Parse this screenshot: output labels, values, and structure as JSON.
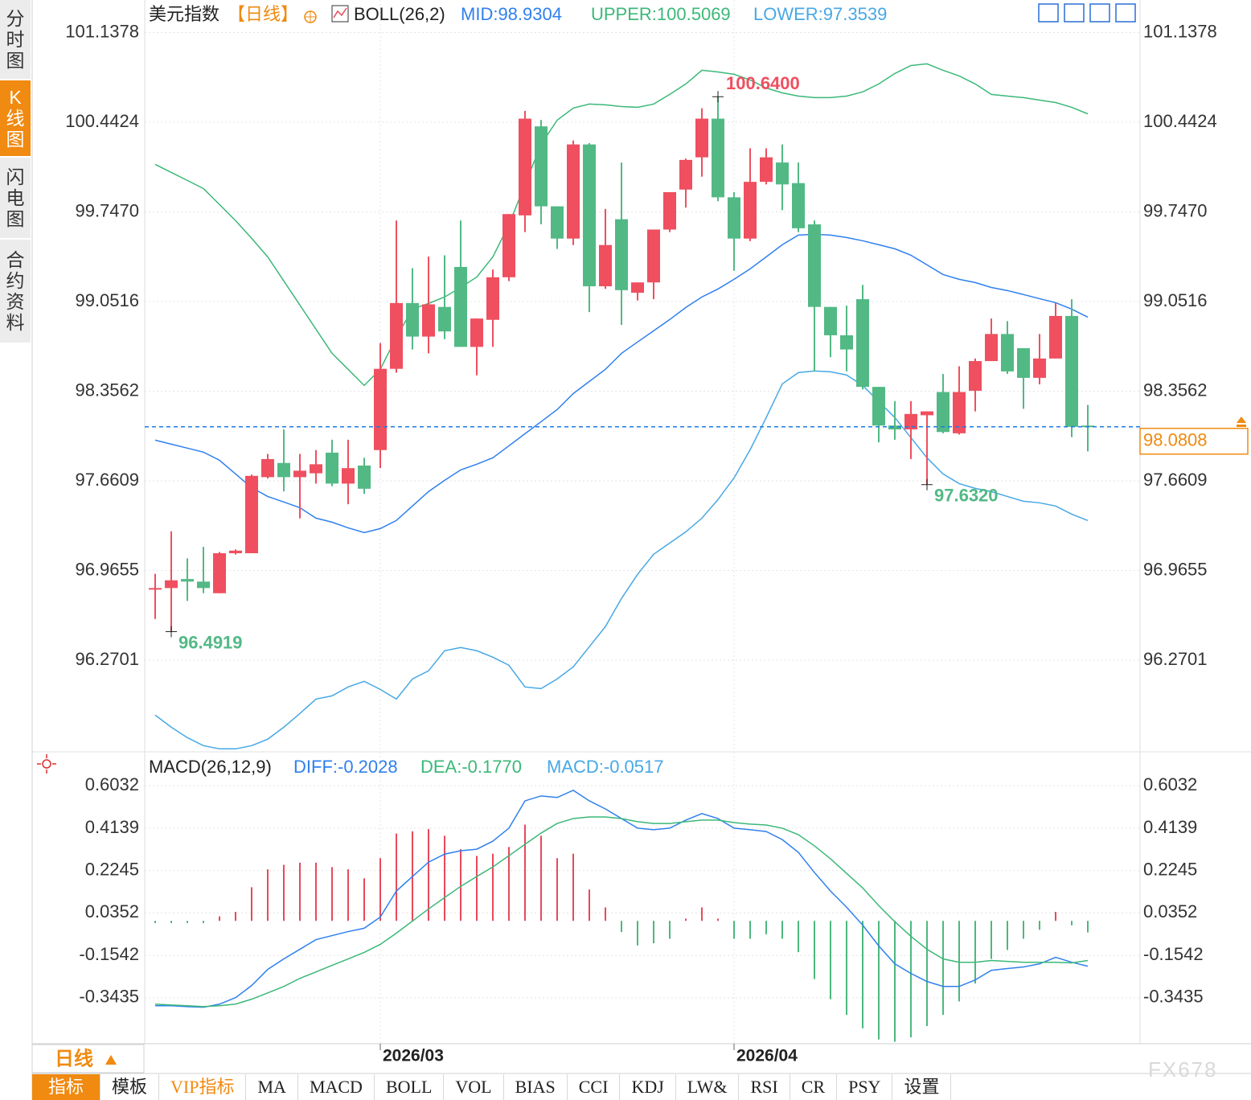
{
  "sidebar": [
    "分时图",
    "K线图",
    "闪电图",
    "合约资料"
  ],
  "timeframe": "日线",
  "tabs": [
    "指标",
    "模板",
    "VIP指标",
    "MA",
    "MACD",
    "BOLL",
    "VOL",
    "BIAS",
    "CCI",
    "KDJ",
    "LW&",
    "RSI",
    "CR",
    "PSY",
    "设置"
  ],
  "watermark": "FX678",
  "chart_data": [
    {
      "type": "candlestick",
      "title": "美元指数",
      "period": "【日线】",
      "indicator": "BOLL(26,2)",
      "categories": [
        null,
        null,
        null,
        null,
        null,
        null,
        null,
        null,
        null,
        null,
        null,
        null,
        null,
        null,
        "2026/03",
        null,
        null,
        null,
        null,
        null,
        null,
        null,
        null,
        null,
        null,
        null,
        null,
        null,
        null,
        null,
        null,
        null,
        null,
        null,
        null,
        null,
        "2026/04",
        null,
        null,
        null,
        null,
        null,
        null,
        null,
        null,
        null,
        null,
        null,
        null,
        null,
        null,
        null,
        null,
        null,
        null,
        null,
        null,
        null,
        null
      ],
      "open": [
        96.83,
        96.83,
        96.9,
        96.88,
        96.79,
        97.1,
        97.1,
        97.69,
        97.8,
        97.69,
        97.72,
        97.88,
        97.64,
        97.78,
        97.9,
        98.53,
        99.04,
        98.78,
        99.01,
        99.32,
        98.7,
        98.91,
        99.24,
        99.72,
        100.41,
        99.79,
        99.54,
        100.27,
        99.17,
        99.69,
        99.12,
        99.2,
        99.61,
        99.92,
        100.17,
        100.47,
        99.86,
        99.54,
        99.98,
        100.13,
        99.97,
        99.65,
        99.01,
        98.79,
        99.07,
        98.39,
        98.09,
        98.06,
        98.17,
        98.35,
        98.03,
        98.36,
        98.59,
        98.8,
        98.69,
        98.46,
        98.61,
        98.94,
        98.09
      ],
      "high": [
        96.94,
        97.27,
        97.06,
        97.15,
        97.11,
        97.13,
        97.71,
        97.87,
        98.06,
        97.87,
        97.9,
        97.98,
        97.98,
        97.84,
        98.73,
        99.68,
        99.31,
        99.4,
        99.41,
        99.68,
        98.92,
        99.3,
        99.73,
        100.53,
        100.46,
        99.79,
        100.3,
        100.28,
        99.77,
        100.13,
        99.2,
        99.61,
        99.9,
        100.16,
        100.55,
        100.64,
        99.9,
        100.24,
        100.24,
        100.27,
        100.13,
        99.68,
        99.01,
        99.02,
        99.18,
        98.39,
        98.28,
        98.28,
        98.2,
        98.49,
        98.55,
        98.61,
        98.92,
        98.9,
        98.69,
        98.8,
        99.04,
        99.07,
        98.25
      ],
      "low": [
        96.59,
        96.4919,
        96.73,
        96.79,
        96.79,
        97.09,
        97.1,
        97.68,
        97.58,
        97.37,
        97.64,
        97.62,
        97.48,
        97.56,
        97.76,
        98.5,
        98.68,
        98.65,
        98.76,
        98.7,
        98.48,
        98.7,
        99.21,
        99.59,
        99.65,
        99.46,
        99.49,
        98.97,
        99.15,
        98.87,
        99.06,
        99.07,
        99.59,
        99.78,
        100.02,
        99.83,
        99.29,
        99.52,
        99.96,
        99.76,
        99.59,
        98.51,
        98.62,
        98.51,
        98.37,
        97.96,
        97.98,
        97.83,
        97.632,
        98.03,
        98.02,
        98.2,
        98.59,
        98.49,
        98.22,
        98.41,
        98.61,
        98.0,
        97.89
      ],
      "close": [
        96.83,
        96.89,
        96.88,
        96.83,
        97.1,
        97.12,
        97.7,
        97.83,
        97.69,
        97.74,
        97.79,
        97.64,
        97.76,
        97.6,
        98.53,
        99.04,
        98.78,
        99.03,
        98.82,
        98.7,
        98.92,
        99.24,
        99.73,
        100.47,
        99.79,
        99.54,
        100.27,
        99.17,
        99.49,
        99.14,
        99.2,
        99.61,
        99.9,
        100.15,
        100.47,
        99.86,
        99.54,
        99.98,
        100.17,
        99.96,
        99.62,
        99.01,
        98.79,
        98.68,
        98.39,
        98.09,
        98.06,
        98.18,
        98.2,
        98.04,
        98.35,
        98.59,
        98.8,
        98.51,
        98.46,
        98.61,
        98.94,
        98.08,
        98.0808
      ],
      "up_color": "#ef4f5f",
      "down_color": "#52b985",
      "series": [
        {
          "name": "MID:98.9304",
          "color": "#2f80ed",
          "values": [
            97.977,
            97.946,
            97.915,
            97.884,
            97.821,
            97.715,
            97.609,
            97.54,
            97.497,
            97.453,
            97.372,
            97.341,
            97.297,
            97.26,
            97.291,
            97.354,
            97.466,
            97.578,
            97.665,
            97.746,
            97.79,
            97.84,
            97.933,
            98.027,
            98.12,
            98.214,
            98.338,
            98.432,
            98.526,
            98.65,
            98.738,
            98.825,
            98.912,
            99.006,
            99.087,
            99.149,
            99.224,
            99.305,
            99.398,
            99.492,
            99.567,
            99.573,
            99.567,
            99.548,
            99.523,
            99.492,
            99.461,
            99.411,
            99.336,
            99.261,
            99.224,
            99.199,
            99.161,
            99.137,
            99.106,
            99.074,
            99.043,
            98.993,
            98.9304
          ]
        },
        {
          "name": "UPPER:100.5069",
          "color": "#3cb878",
          "values": [
            100.115,
            100.053,
            99.991,
            99.928,
            99.804,
            99.679,
            99.542,
            99.398,
            99.211,
            99.024,
            98.837,
            98.65,
            98.526,
            98.401,
            98.526,
            98.775,
            98.993,
            99.037,
            99.087,
            99.161,
            99.242,
            99.398,
            99.648,
            99.96,
            100.271,
            100.458,
            100.552,
            100.583,
            100.577,
            100.564,
            100.558,
            100.583,
            100.658,
            100.739,
            100.845,
            100.832,
            100.814,
            100.77,
            100.708,
            100.67,
            100.645,
            100.633,
            100.633,
            100.645,
            100.677,
            100.739,
            100.82,
            100.882,
            100.895,
            100.845,
            100.801,
            100.739,
            100.658,
            100.645,
            100.633,
            100.614,
            100.595,
            100.558,
            100.5069
          ]
        },
        {
          "name": "LOWER:97.3539",
          "color": "#47a8e5",
          "values": [
            95.845,
            95.751,
            95.67,
            95.608,
            95.583,
            95.583,
            95.608,
            95.658,
            95.751,
            95.857,
            95.969,
            95.994,
            96.063,
            96.107,
            96.044,
            95.969,
            96.125,
            96.188,
            96.344,
            96.369,
            96.344,
            96.294,
            96.231,
            96.063,
            96.05,
            96.125,
            96.219,
            96.375,
            96.531,
            96.749,
            96.936,
            97.092,
            97.179,
            97.266,
            97.372,
            97.516,
            97.684,
            97.902,
            98.152,
            98.413,
            98.501,
            98.513,
            98.507,
            98.482,
            98.401,
            98.276,
            98.152,
            97.996,
            97.84,
            97.715,
            97.64,
            97.603,
            97.578,
            97.54,
            97.503,
            97.491,
            97.466,
            97.403,
            97.3539
          ]
        }
      ],
      "ylim": [
        95.56,
        101.39
      ],
      "yticks": [
        101.1378,
        100.4424,
        {
          "value": 99.747,
          "label": "99.7470"
        },
        99.0516,
        98.3562,
        97.6609,
        96.9655,
        96.2701
      ],
      "grid": true,
      "last_price": {
        "value": 98.0808,
        "label": "98.0808"
      },
      "high_label": {
        "value": 100.64,
        "label": "100.6400"
      },
      "low_labels": [
        {
          "value": 96.4919,
          "label": "96.4919"
        },
        {
          "value": 97.632,
          "label": "97.6320"
        }
      ]
    },
    {
      "type": "combo",
      "title": "MACD(26,12,9)",
      "series": [
        {
          "name": "DIFF:-0.2028",
          "type": "line",
          "color": "#2f80ed",
          "values": [
            -0.379,
            -0.379,
            -0.383,
            -0.386,
            -0.372,
            -0.343,
            -0.289,
            -0.217,
            -0.17,
            -0.127,
            -0.084,
            -0.066,
            -0.048,
            -0.033,
            0.017,
            0.133,
            0.198,
            0.262,
            0.298,
            0.313,
            0.32,
            0.356,
            0.414,
            0.536,
            0.558,
            0.551,
            0.583,
            0.536,
            0.5,
            0.457,
            0.414,
            0.407,
            0.414,
            0.45,
            0.479,
            0.457,
            0.414,
            0.407,
            0.399,
            0.363,
            0.306,
            0.216,
            0.133,
            0.061,
            -0.019,
            -0.112,
            -0.192,
            -0.235,
            -0.271,
            -0.293,
            -0.293,
            -0.264,
            -0.221,
            -0.213,
            -0.206,
            -0.192,
            -0.163,
            -0.185,
            -0.2028
          ]
        },
        {
          "name": "DEA:-0.1770",
          "type": "line",
          "color": "#3cb878",
          "values": [
            -0.372,
            -0.376,
            -0.379,
            -0.383,
            -0.379,
            -0.372,
            -0.35,
            -0.322,
            -0.293,
            -0.257,
            -0.228,
            -0.199,
            -0.17,
            -0.141,
            -0.105,
            -0.055,
            -0.001,
            0.053,
            0.104,
            0.154,
            0.198,
            0.241,
            0.291,
            0.342,
            0.392,
            0.435,
            0.457,
            0.464,
            0.464,
            0.457,
            0.443,
            0.435,
            0.435,
            0.443,
            0.45,
            0.45,
            0.439,
            0.432,
            0.428,
            0.414,
            0.385,
            0.335,
            0.277,
            0.212,
            0.147,
            0.068,
            -0.004,
            -0.069,
            -0.127,
            -0.17,
            -0.185,
            -0.185,
            -0.177,
            -0.181,
            -0.185,
            -0.185,
            -0.185,
            -0.188,
            -0.177
          ]
        },
        {
          "name": "MACD:-0.0517",
          "type": "bar",
          "color": "#47a8e5",
          "up_color": "#e8495a",
          "down_color": "#4cb87e",
          "values": [
            -0.01,
            -0.01,
            -0.01,
            -0.01,
            0.02,
            0.04,
            0.15,
            0.23,
            0.25,
            0.26,
            0.26,
            0.24,
            0.23,
            0.19,
            0.28,
            0.39,
            0.4,
            0.41,
            0.38,
            0.32,
            0.29,
            0.3,
            0.33,
            0.43,
            0.38,
            0.28,
            0.3,
            0.14,
            0.06,
            -0.05,
            -0.11,
            -0.1,
            -0.08,
            0.01,
            0.06,
            0.01,
            -0.08,
            -0.08,
            -0.06,
            -0.08,
            -0.14,
            -0.26,
            -0.35,
            -0.42,
            -0.48,
            -0.53,
            -0.54,
            -0.52,
            -0.47,
            -0.42,
            -0.36,
            -0.28,
            -0.17,
            -0.13,
            -0.08,
            -0.04,
            0.04,
            -0.02,
            -0.0517
          ]
        }
      ],
      "ylim": [
        -0.556,
        0.737
      ],
      "yticks": [
        0.6032,
        0.4139,
        0.2245,
        0.0352,
        -0.1542,
        -0.3435
      ],
      "grid": true
    }
  ]
}
